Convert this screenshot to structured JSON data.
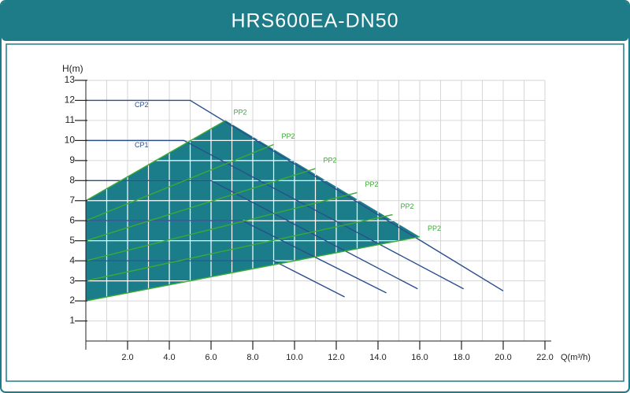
{
  "chart_data": {
    "type": "line",
    "title": "HRS600EA-DN50",
    "ylabel": "H(m)",
    "xlabel": "Q(m³/h)",
    "xlim": [
      0,
      22
    ],
    "ylim": [
      0,
      13
    ],
    "xticks": [
      {
        "value": 2,
        "label": "2.0"
      },
      {
        "value": 4,
        "label": "4.0"
      },
      {
        "value": 6,
        "label": "6.0"
      },
      {
        "value": 8,
        "label": "8.0"
      },
      {
        "value": 10,
        "label": "10.0"
      },
      {
        "value": 12,
        "label": "12.0"
      },
      {
        "value": 14,
        "label": "14.0"
      },
      {
        "value": 16,
        "label": "16.0"
      },
      {
        "value": 18,
        "label": "18.0"
      },
      {
        "value": 20,
        "label": "20.0"
      },
      {
        "value": 22,
        "label": "22.0"
      }
    ],
    "yticks": [
      1,
      2,
      3,
      4,
      5,
      6,
      7,
      8,
      9,
      10,
      11,
      12,
      13
    ],
    "grid": true,
    "area": {
      "color": "#1b7d89",
      "x": [
        0,
        0,
        6.7,
        16,
        8,
        4
      ],
      "values": [
        2,
        7,
        11,
        5.2,
        3.6,
        2.8
      ]
    },
    "series": [
      {
        "name": "CP2",
        "color": "#2b4f8e",
        "x": [
          0,
          5.0,
          20.0
        ],
        "values": [
          12,
          12,
          2.5
        ]
      },
      {
        "name": "CP1",
        "color": "#2b4f8e",
        "x": [
          0,
          4.7,
          18.1
        ],
        "values": [
          10,
          10,
          2.6
        ]
      },
      {
        "color": "#2b4f8e",
        "x": [
          0,
          6.0,
          15.9
        ],
        "values": [
          8,
          8,
          2.6
        ]
      },
      {
        "color": "#2b4f8e",
        "x": [
          0,
          7.5,
          14.4
        ],
        "values": [
          6,
          6,
          2.4
        ]
      },
      {
        "color": "#2b4f8e",
        "x": [
          0,
          9.0,
          12.4
        ],
        "values": [
          4,
          4,
          2.2
        ]
      },
      {
        "name": "PP2",
        "color": "#3aaa35",
        "x": [
          0,
          6.7
        ],
        "values": [
          7,
          11
        ]
      },
      {
        "name": "PP2",
        "color": "#3aaa35",
        "x": [
          0,
          9.0
        ],
        "values": [
          6,
          9.8
        ]
      },
      {
        "name": "PP2",
        "color": "#3aaa35",
        "x": [
          0,
          11.0
        ],
        "values": [
          5,
          8.6
        ]
      },
      {
        "name": "PP2",
        "color": "#3aaa35",
        "x": [
          0,
          13.0
        ],
        "values": [
          4,
          7.4
        ]
      },
      {
        "name": "PP2",
        "color": "#3aaa35",
        "x": [
          0,
          14.7
        ],
        "values": [
          3,
          6.3
        ]
      },
      {
        "name": "PP2",
        "color": "#3aaa35",
        "x": [
          0,
          4,
          8,
          16
        ],
        "values": [
          2,
          2.8,
          3.6,
          5.2
        ]
      }
    ]
  }
}
